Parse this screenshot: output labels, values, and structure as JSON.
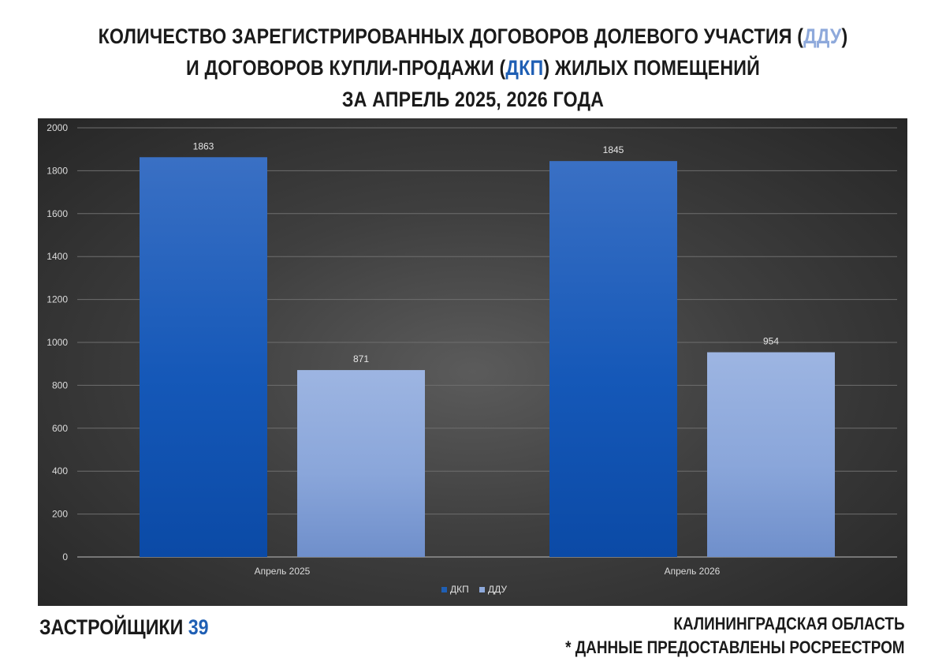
{
  "title": {
    "line1_prefix": "КОЛИЧЕСТВО ЗАРЕГИСТРИРОВАННЫХ ДОГОВОРОВ ДОЛЕВОГО УЧАСТИЯ (",
    "line1_highlight": "ДДУ",
    "line1_suffix": ")",
    "line2_prefix": "И ДОГОВОРОВ КУПЛИ-ПРОДАЖИ (",
    "line2_highlight": "ДКП",
    "line2_suffix": ") ЖИЛЫХ ПОМЕЩЕНИЙ",
    "line3": "ЗА АПРЕЛЬ 2025, 2026 ГОДА"
  },
  "footer": {
    "brand": "ЗАСТРОЙЩИКИ",
    "brand_number": "39",
    "region": "КАЛИНИНГРАДСКАЯ ОБЛАСТЬ",
    "source": "* ДАННЫЕ ПРЕДОСТАВЛЕНЫ РОСРЕЕСТРОМ"
  },
  "colors": {
    "dkp": "#1f5fb4",
    "ddu": "#8ea9db"
  },
  "chart_data": {
    "type": "bar",
    "title": "",
    "xlabel": "",
    "ylabel": "",
    "categories": [
      "Апрель 2025",
      "Апрель 2026"
    ],
    "series": [
      {
        "name": "ДКП",
        "values": [
          1863,
          1845
        ],
        "color": "#1f5fb4"
      },
      {
        "name": "ДДУ",
        "values": [
          871,
          954
        ],
        "color": "#8ea9db"
      }
    ],
    "ylim": [
      0,
      2000
    ],
    "yticks": [
      0,
      200,
      400,
      600,
      800,
      1000,
      1200,
      1400,
      1600,
      1800,
      2000
    ],
    "grid": true,
    "legend": "bottom",
    "data_labels": true
  }
}
